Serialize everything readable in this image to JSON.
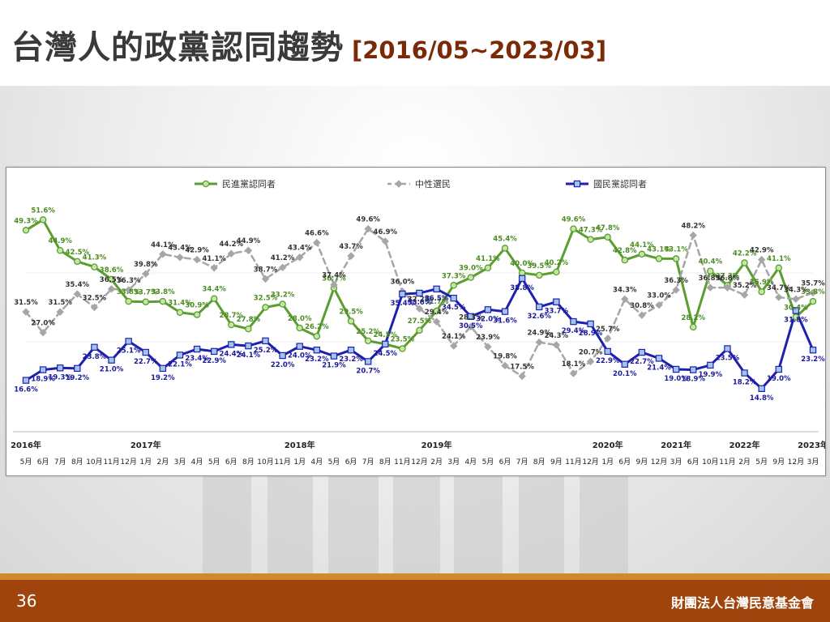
{
  "title": {
    "main": "台灣人的政黨認同趨勢",
    "range": "[2016/05~2023/03]"
  },
  "footer": {
    "page_number": "36",
    "organization": "財團法人台灣民意基金會"
  },
  "colors": {
    "dpp": "#5a9e2f",
    "dpp_fill": "#c6e6a8",
    "neutral": "#a6a6a6",
    "kmt": "#1f1fb0",
    "kmt_fill": "#9fc6ea",
    "footer": "#a0440e",
    "stripe": "#d08a2e"
  },
  "chart_data": {
    "type": "line",
    "legend_position": "top",
    "ylim": [
      10,
      55
    ],
    "grid": false,
    "x": [
      "5月",
      "6月",
      "7月",
      "8月",
      "10月",
      "11月",
      "12月",
      "1月",
      "2月",
      "3月",
      "4月",
      "5月",
      "6月",
      "8月",
      "10月",
      "11月",
      "1月",
      "4月",
      "5月",
      "6月",
      "7月",
      "8月",
      "11月",
      "12月",
      "2月",
      "3月",
      "4月",
      "5月",
      "6月",
      "7月",
      "8月",
      "9月",
      "11月",
      "12月",
      "1月",
      "6月",
      "9月",
      "12月",
      "3月",
      "6月",
      "10月",
      "11月",
      "2月",
      "5月",
      "9月",
      "12月",
      "3月"
    ],
    "year_labels": [
      {
        "index": 0,
        "label": "2016年"
      },
      {
        "index": 7,
        "label": "2017年"
      },
      {
        "index": 16,
        "label": "2018年"
      },
      {
        "index": 24,
        "label": "2019年"
      },
      {
        "index": 34,
        "label": "2020年"
      },
      {
        "index": 38,
        "label": "2021年"
      },
      {
        "index": 42,
        "label": "2022年"
      },
      {
        "index": 46,
        "label": "2023年"
      }
    ],
    "series": [
      {
        "name": "民進黨認同者",
        "values": [
          49.3,
          51.6,
          44.9,
          42.5,
          41.3,
          38.6,
          33.8,
          33.7,
          33.8,
          31.4,
          30.9,
          34.4,
          28.7,
          27.8,
          32.5,
          33.2,
          28.0,
          26.2,
          36.7,
          29.5,
          25.2,
          24.5,
          23.5,
          27.5,
          31.7,
          37.3,
          39.0,
          41.1,
          45.4,
          40.0,
          39.5,
          40.2,
          49.6,
          47.3,
          47.8,
          42.8,
          44.1,
          43.1,
          43.1,
          28.2,
          40.4,
          37.3,
          42.2,
          35.9,
          41.1,
          30.4,
          33.8
        ],
        "labels": [
          "49.3%",
          "51.6%",
          "44.9%",
          "42.5%",
          "41.3%",
          "38.6%",
          "33.8%",
          "33.7%",
          "33.8%",
          "31.4%",
          "30.9%",
          "34.4%",
          "28.7%",
          "27.8%",
          "32.5%",
          "33.2%",
          "28.0%",
          "26.2%",
          "36.7%",
          "29.5%",
          "25.2%",
          "24.5%",
          "23.5%",
          "27.5%",
          "31.7%",
          "37.3%",
          "39.0%",
          "41.1%",
          "45.4%",
          "40.0%",
          "39.5%",
          "40.2%",
          "49.6%",
          "47.3%",
          "47.8%",
          "42.8%",
          "44.1%",
          "43.1%",
          "43.1%",
          "28.2%",
          "40.4%",
          "37.3%",
          "42.2%",
          "35.9%",
          "41.1%",
          "30.4%",
          "33.8%"
        ]
      },
      {
        "name": "中性選民",
        "values": [
          31.5,
          27.0,
          31.5,
          35.4,
          32.5,
          36.5,
          36.3,
          39.8,
          44.1,
          43.4,
          42.9,
          41.1,
          44.2,
          44.9,
          38.7,
          41.2,
          43.4,
          46.6,
          37.4,
          43.7,
          49.6,
          46.9,
          36.0,
          32.2,
          29.4,
          24.1,
          28.3,
          23.9,
          19.8,
          17.5,
          24.9,
          24.3,
          18.1,
          20.7,
          25.7,
          34.3,
          30.8,
          33.0,
          36.3,
          48.2,
          36.8,
          36.8,
          35.2,
          42.9,
          34.7,
          34.3,
          35.7
        ],
        "labels": [
          "31.5%",
          "27.0%",
          "31.5%",
          "35.4%",
          "32.5%",
          "36.5%",
          "36.3%",
          "39.8%",
          "44.1%",
          "43.4%",
          "42.9%",
          "41.1%",
          "44.2%",
          "44.9%",
          "38.7%",
          "41.2%",
          "43.4%",
          "46.6%",
          "37.4%",
          "43.7%",
          "49.6%",
          "46.9%",
          "36.0%",
          "32.2%",
          "29.4%",
          "24.1%",
          "28.3%",
          "23.9%",
          "19.8%",
          "17.5%",
          "24.9%",
          "24.3%",
          "18.1%",
          "20.7%",
          "25.7%",
          "34.3%",
          "30.8%",
          "33.0%",
          "36.3%",
          "48.2%",
          "36.8%",
          "36.8%",
          "35.2%",
          "42.9%",
          "34.7%",
          "34.3%",
          "35.7%"
        ]
      },
      {
        "name": "國民黨認同者",
        "values": [
          16.6,
          18.9,
          19.3,
          19.2,
          23.8,
          21.0,
          25.1,
          22.7,
          19.2,
          22.1,
          23.4,
          22.9,
          24.4,
          24.1,
          25.2,
          22.0,
          24.0,
          23.2,
          21.9,
          23.2,
          20.7,
          24.5,
          35.4,
          35.6,
          36.5,
          34.5,
          30.5,
          32.0,
          31.6,
          38.8,
          32.6,
          33.7,
          29.4,
          28.9,
          22.9,
          20.1,
          22.7,
          21.4,
          19.0,
          18.9,
          19.9,
          23.5,
          18.2,
          14.8,
          19.0,
          31.8,
          23.2
        ],
        "labels": [
          "16.6%",
          "18.9%",
          "19.3%",
          "19.2%",
          "23.8%",
          "21.0%",
          "25.1%",
          "22.7%",
          "19.2%",
          "22.1%",
          "23.4%",
          "22.9%",
          "24.4%",
          "24.1%",
          "25.2%",
          "22.0%",
          "24.0%",
          "23.2%",
          "21.9%",
          "23.2%",
          "20.7%",
          "24.5%",
          "35.4%",
          "35.6%",
          "36.5%",
          "34.5%",
          "30.5%",
          "32.0%",
          "31.6%",
          "38.8%",
          "32.6%",
          "33.7%",
          "29.4%",
          "28.9%",
          "22.9%",
          "20.1%",
          "22.7%",
          "21.4%",
          "19.0%",
          "18.9%",
          "19.9%",
          "23.5%",
          "18.2%",
          "14.8%",
          "19.0%",
          "31.8%",
          "23.2%"
        ]
      }
    ]
  }
}
